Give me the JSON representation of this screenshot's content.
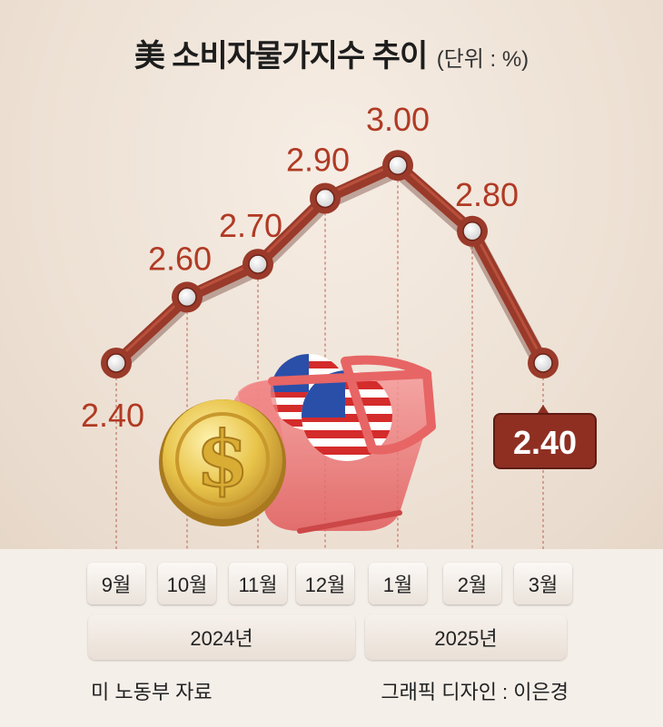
{
  "header": {
    "title": "美 소비자물가지수 추이",
    "unit": "(단위 : %)"
  },
  "chart_data": {
    "type": "line",
    "categories": [
      "9월",
      "10월",
      "11월",
      "12월",
      "1월",
      "2월",
      "3월"
    ],
    "values": [
      2.4,
      2.6,
      2.7,
      2.9,
      3.0,
      2.8,
      2.4
    ],
    "labels": [
      "2.40",
      "2.60",
      "2.70",
      "2.90",
      "3.00",
      "2.80",
      "2.40"
    ],
    "year_groups": [
      {
        "label": "2024년",
        "months": [
          "9월",
          "10월",
          "11월",
          "12월"
        ]
      },
      {
        "label": "2025년",
        "months": [
          "1월",
          "2월",
          "3월"
        ]
      }
    ],
    "highlight_last": true,
    "colors": {
      "line": "#9a3a2a",
      "label": "#b03a24",
      "highlight_box": "#8e2f22"
    }
  },
  "footer": {
    "source": "미 노동부 자료",
    "credit": "그래픽 디자인 : 이은경"
  }
}
